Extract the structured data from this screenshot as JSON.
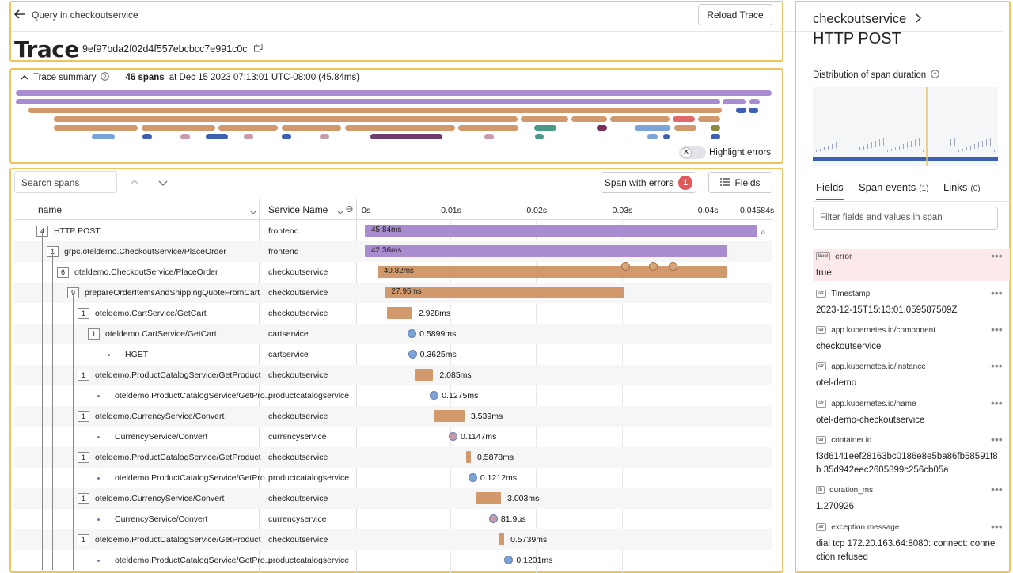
{
  "header": {
    "back_label": "Query in checkoutservice",
    "reload_label": "Reload Trace",
    "title": "Trace",
    "trace_id": "9ef97bda2f02d4f557ebcbcc7e991c0c"
  },
  "summary": {
    "label": "Trace summary",
    "spans": "46 spans",
    "at": "at Dec 15 2023 07:13:01 UTC-08:00 (45.84ms)",
    "highlight_label": "Highlight errors",
    "toggle_glyph": "✕"
  },
  "toolbar": {
    "search_placeholder": "Search spans",
    "errors_label": "Span with errors",
    "errors_count": "1",
    "fields_label": "Fields"
  },
  "table": {
    "col_name": "name",
    "col_service": "Service Name",
    "ticks": [
      "0s",
      "0.01s",
      "0.02s",
      "0.03s",
      "0.04s",
      "0.04584s"
    ],
    "rows": [
      {
        "count": "4",
        "name": "HTTP POST",
        "service": "frontend",
        "duration": "45.84ms"
      },
      {
        "count": "1",
        "name": "grpc.oteldemo.CheckoutService/PlaceOrder",
        "service": "frontend",
        "duration": "42.36ms"
      },
      {
        "count": "6",
        "name": "oteldemo.CheckoutService/PlaceOrder",
        "service": "checkoutservice",
        "duration": "40.82ms"
      },
      {
        "count": "9",
        "name": "prepareOrderItemsAndShippingQuoteFromCart",
        "service": "checkoutservice",
        "duration": "27.95ms"
      },
      {
        "count": "1",
        "name": "oteldemo.CartService/GetCart",
        "service": "checkoutservice",
        "duration": "2.928ms"
      },
      {
        "count": "1",
        "name": "oteldemo.CartService/GetCart",
        "service": "cartservice",
        "duration": "0.5899ms"
      },
      {
        "count": "",
        "name": "HGET",
        "service": "cartservice",
        "duration": "0.3625ms"
      },
      {
        "count": "1",
        "name": "oteldemo.ProductCatalogService/GetProduct",
        "service": "checkoutservice",
        "duration": "2.085ms"
      },
      {
        "count": "",
        "name": "oteldemo.ProductCatalogService/GetPro...",
        "service": "productcatalogservice",
        "duration": "0.1275ms"
      },
      {
        "count": "1",
        "name": "oteldemo.CurrencyService/Convert",
        "service": "checkoutservice",
        "duration": "3.539ms"
      },
      {
        "count": "",
        "name": "CurrencyService/Convert",
        "service": "currencyservice",
        "duration": "0.1147ms"
      },
      {
        "count": "1",
        "name": "oteldemo.ProductCatalogService/GetProduct",
        "service": "checkoutservice",
        "duration": "0.5878ms"
      },
      {
        "count": "",
        "name": "oteldemo.ProductCatalogService/GetPro...",
        "service": "productcatalogservice",
        "duration": "0.1212ms"
      },
      {
        "count": "1",
        "name": "oteldemo.CurrencyService/Convert",
        "service": "checkoutservice",
        "duration": "3.003ms"
      },
      {
        "count": "",
        "name": "CurrencyService/Convert",
        "service": "currencyservice",
        "duration": "81.9µs"
      },
      {
        "count": "1",
        "name": "oteldemo.ProductCatalogService/GetProduct",
        "service": "checkoutservice",
        "duration": "0.5739ms"
      },
      {
        "count": "",
        "name": "oteldemo.ProductCatalogService/GetPro...",
        "service": "productcatalogservice",
        "duration": "0.1201ms"
      }
    ]
  },
  "detail": {
    "service": "checkoutservice",
    "span_name": "HTTP POST",
    "dist_label": "Distribution of span duration",
    "tabs": [
      {
        "label": "Fields",
        "count": ""
      },
      {
        "label": "Span events",
        "count": "(1)"
      },
      {
        "label": "Links",
        "count": "(0)"
      }
    ],
    "filter_placeholder": "Filter fields and values in span",
    "fields": [
      {
        "type": "bool",
        "key": "error",
        "value": "true"
      },
      {
        "type": "str",
        "key": "Timestamp",
        "value": "2023-12-15T15:13:01.059587509Z"
      },
      {
        "type": "str",
        "key": "app.kubernetes.io/component",
        "value": "checkoutservice"
      },
      {
        "type": "str",
        "key": "app.kubernetes.io/instance",
        "value": "otel-demo"
      },
      {
        "type": "str",
        "key": "app.kubernetes.io/name",
        "value": "otel-demo-checkoutservice"
      },
      {
        "type": "str",
        "key": "container.id",
        "value": "f3d6141eef28163bc0186e8e5ba86fb58591f8b 35d942eec2605899c256cb05a"
      },
      {
        "type": "flt",
        "key": "duration_ms",
        "value": "1.270926"
      },
      {
        "type": "str",
        "key": "exception.message",
        "value": "dial tcp 172.20.163.64:8080: connect: connection refused"
      }
    ]
  },
  "colors": {
    "frontend": "#a98cd0",
    "checkout": "#d29a6c",
    "cart": "#7aa3d8",
    "currency": "#c79aae",
    "accent": "#eec55a"
  }
}
